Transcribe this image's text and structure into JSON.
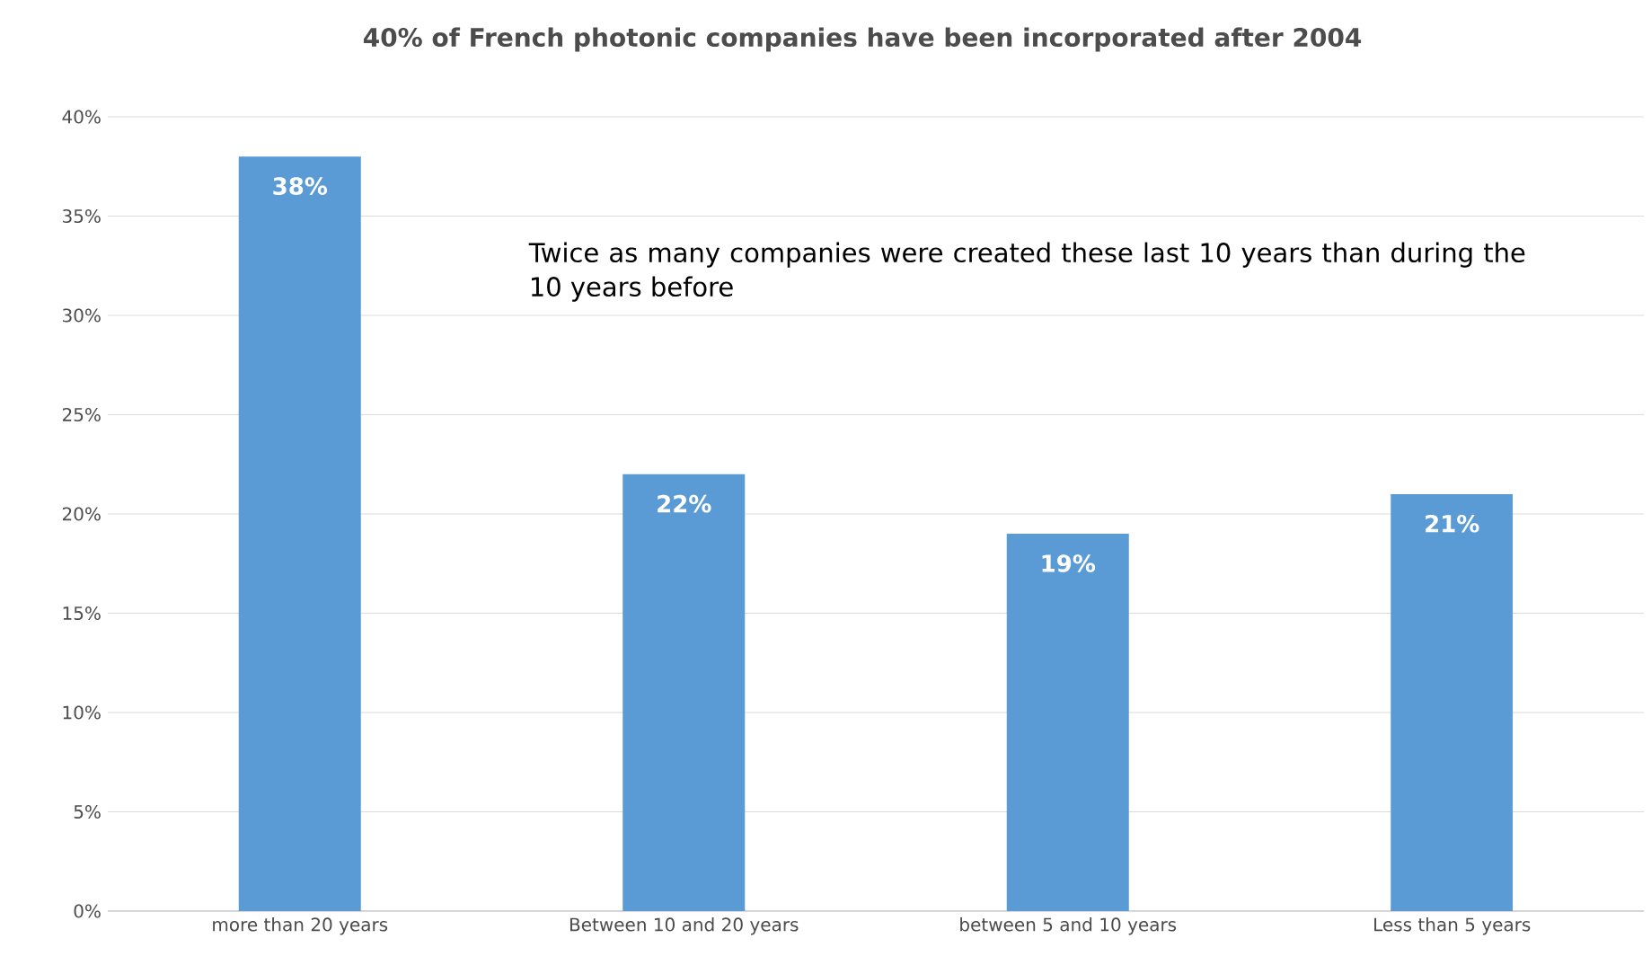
{
  "chart_data": {
    "type": "bar",
    "title": "40% of French photonic companies have been incorporated after 2004",
    "categories": [
      "more than 20 years",
      "Between 10 and 20 years",
      "between 5 and 10 years",
      "Less than 5 years"
    ],
    "values": [
      38,
      22,
      19,
      21
    ],
    "value_labels": [
      "38%",
      "22%",
      "19%",
      "21%"
    ],
    "color": "#5b9bd5",
    "ylim": [
      0,
      40
    ],
    "yticks": [
      {
        "value": 0,
        "label": "0%"
      },
      {
        "value": 5,
        "label": "5%"
      },
      {
        "value": 10,
        "label": "10%"
      },
      {
        "value": 15,
        "label": "15%"
      },
      {
        "value": 20,
        "label": "20%"
      },
      {
        "value": 25,
        "label": "25%"
      },
      {
        "value": 30,
        "label": "30%"
      },
      {
        "value": 35,
        "label": "35%"
      },
      {
        "value": 40,
        "label": "40%"
      }
    ],
    "grid": "y",
    "annotations": [
      "Twice as many companies were created these last 10 years than during the 10 years before"
    ]
  }
}
